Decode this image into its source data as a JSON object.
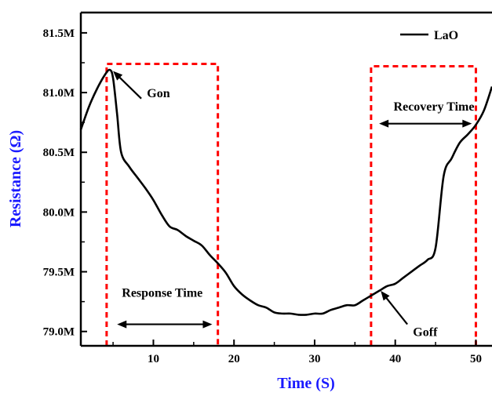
{
  "chart_data": {
    "type": "line",
    "xlabel": "Time (S)",
    "ylabel": "Resistance  (Ω)",
    "xlim": [
      1,
      52
    ],
    "ylim": [
      78.88,
      81.67
    ],
    "x_ticks": [
      10,
      20,
      30,
      40,
      50
    ],
    "y_ticks": [
      79.0,
      79.5,
      80.0,
      80.5,
      81.0,
      81.5
    ],
    "y_tick_labels": [
      "79.0M",
      "79.5M",
      "80.0M",
      "80.5M",
      "81.0M",
      "81.5M"
    ],
    "axis_color": "#000000",
    "label_color": "#1a1aff",
    "legend_position": "top-right",
    "series": [
      {
        "name": "LaO",
        "color": "#000000",
        "x": [
          1,
          2,
          3,
          4,
          4.6,
          5,
          5.5,
          6,
          7,
          8,
          9,
          10,
          11,
          12,
          13,
          14,
          15,
          16,
          17,
          18,
          19,
          20,
          21,
          22,
          23,
          24,
          25,
          26,
          27,
          28,
          29,
          30,
          31,
          32,
          33,
          34,
          35,
          36,
          37,
          38,
          39,
          40,
          41,
          42,
          43,
          44,
          45,
          46,
          47,
          48,
          49,
          50,
          51,
          52
        ],
        "y": [
          80.69,
          80.88,
          81.03,
          81.15,
          81.19,
          81.12,
          80.82,
          80.5,
          80.38,
          80.29,
          80.2,
          80.1,
          79.98,
          79.88,
          79.85,
          79.8,
          79.76,
          79.72,
          79.64,
          79.57,
          79.49,
          79.38,
          79.31,
          79.26,
          79.22,
          79.2,
          79.16,
          79.15,
          79.15,
          79.14,
          79.14,
          79.15,
          79.15,
          79.18,
          79.2,
          79.22,
          79.22,
          79.26,
          79.3,
          79.34,
          79.38,
          79.4,
          79.45,
          79.5,
          79.55,
          79.6,
          79.7,
          80.3,
          80.45,
          80.58,
          80.65,
          80.73,
          80.85,
          81.05
        ]
      }
    ],
    "dashed_boxes": [
      {
        "x0": 4.2,
        "x1": 18,
        "y0": 78.88,
        "y1": 81.24,
        "color": "#ff0000"
      },
      {
        "x0": 37,
        "x1": 50,
        "y0": 78.88,
        "y1": 81.22,
        "color": "#ff0000"
      }
    ],
    "annotations": [
      {
        "text": "Gon",
        "text_x": 9.2,
        "text_y": 81.0,
        "arrow_from": [
          8.5,
          80.95
        ],
        "arrow_to": [
          5.0,
          81.18
        ]
      },
      {
        "text": "Goff",
        "text_x": 42.2,
        "text_y": 79.0,
        "arrow_from": [
          41.5,
          79.06
        ],
        "arrow_to": [
          38.2,
          79.34
        ]
      },
      {
        "text": "Response Time",
        "text_x": 11.1,
        "text_y": 79.33,
        "double_arrow": [
          5.5,
          17.3
        ],
        "arrow_y": 79.06
      },
      {
        "text": "Recovery Time",
        "text_x": 44.8,
        "text_y": 80.89,
        "double_arrow": [
          38.0,
          49.5
        ],
        "arrow_y": 80.74
      }
    ]
  }
}
